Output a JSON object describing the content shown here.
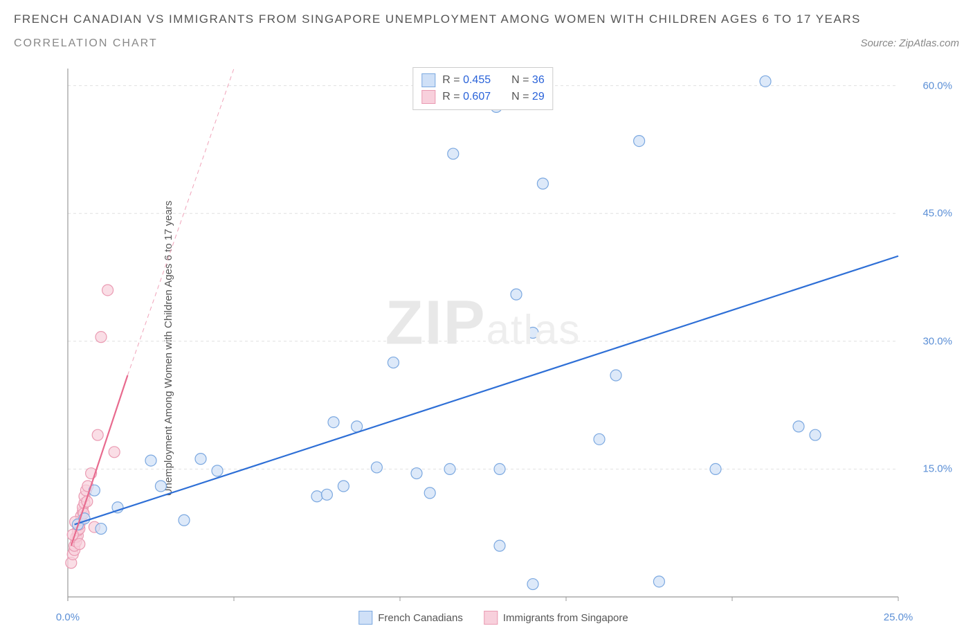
{
  "header": {
    "title": "FRENCH CANADIAN VS IMMIGRANTS FROM SINGAPORE UNEMPLOYMENT AMONG WOMEN WITH CHILDREN AGES 6 TO 17 YEARS",
    "subtitle": "CORRELATION CHART",
    "source": "Source: ZipAtlas.com"
  },
  "watermark": {
    "zip": "ZIP",
    "atlas": "atlas"
  },
  "chart": {
    "type": "scatter",
    "y_axis_label": "Unemployment Among Women with Children Ages 6 to 17 years",
    "x_range": [
      0,
      25
    ],
    "y_range": [
      0,
      62
    ],
    "x_ticks": [
      0,
      5,
      10,
      15,
      20,
      25
    ],
    "y_ticks": [
      15,
      30,
      45,
      60
    ],
    "x_tick_labels": [
      "0.0%",
      "",
      "",
      "",
      "",
      "25.0%"
    ],
    "y_tick_labels": [
      "15.0%",
      "30.0%",
      "45.0%",
      "60.0%"
    ],
    "grid_color": "#e0e0e0",
    "axis_color": "#999999",
    "background_color": "#ffffff",
    "marker_radius": 8,
    "marker_stroke_width": 1.2,
    "series": [
      {
        "name": "French Canadians",
        "label": "French Canadians",
        "fill": "#cfe0f7",
        "stroke": "#7ba8e0",
        "fill_opacity": 0.7,
        "R": "0.455",
        "N": "36",
        "points": [
          [
            0.3,
            8.5
          ],
          [
            0.5,
            9.2
          ],
          [
            0.8,
            12.5
          ],
          [
            1.0,
            8.0
          ],
          [
            1.5,
            10.5
          ],
          [
            2.5,
            16.0
          ],
          [
            2.8,
            13.0
          ],
          [
            3.5,
            9.0
          ],
          [
            4.0,
            16.2
          ],
          [
            4.5,
            14.8
          ],
          [
            7.5,
            11.8
          ],
          [
            7.8,
            12.0
          ],
          [
            8.3,
            13.0
          ],
          [
            8.0,
            20.5
          ],
          [
            8.7,
            20.0
          ],
          [
            9.3,
            15.2
          ],
          [
            9.8,
            27.5
          ],
          [
            10.5,
            14.5
          ],
          [
            10.9,
            12.2
          ],
          [
            11.5,
            15.0
          ],
          [
            11.6,
            52.0
          ],
          [
            13.0,
            6.0
          ],
          [
            13.0,
            15.0
          ],
          [
            12.9,
            57.5
          ],
          [
            13.5,
            35.5
          ],
          [
            14.0,
            1.5
          ],
          [
            14.0,
            31.0
          ],
          [
            14.3,
            48.5
          ],
          [
            16.0,
            18.5
          ],
          [
            16.5,
            26.0
          ],
          [
            17.2,
            53.5
          ],
          [
            17.8,
            1.8
          ],
          [
            19.5,
            15.0
          ],
          [
            21.0,
            60.5
          ],
          [
            22.0,
            20.0
          ],
          [
            22.5,
            19.0
          ]
        ],
        "trend": {
          "x1": 0.2,
          "y1": 8.5,
          "x2": 25.0,
          "y2": 40.0,
          "width": 2.2,
          "dash": null
        }
      },
      {
        "name": "Immigrants from Singapore",
        "label": "Immigrants from Singapore",
        "fill": "#f8d0dc",
        "stroke": "#ea9ab2",
        "fill_opacity": 0.7,
        "R": "0.607",
        "N": "29",
        "points": [
          [
            0.1,
            4.0
          ],
          [
            0.15,
            5.0
          ],
          [
            0.2,
            5.5
          ],
          [
            0.2,
            6.0
          ],
          [
            0.25,
            6.5
          ],
          [
            0.25,
            7.0
          ],
          [
            0.3,
            7.2
          ],
          [
            0.3,
            7.8
          ],
          [
            0.35,
            8.0
          ],
          [
            0.35,
            8.5
          ],
          [
            0.4,
            9.0
          ],
          [
            0.4,
            9.5
          ],
          [
            0.45,
            10.0
          ],
          [
            0.45,
            10.5
          ],
          [
            0.5,
            11.0
          ],
          [
            0.5,
            11.8
          ],
          [
            0.55,
            12.5
          ],
          [
            0.6,
            13.0
          ],
          [
            0.7,
            14.5
          ],
          [
            0.8,
            8.2
          ],
          [
            0.9,
            19.0
          ],
          [
            1.0,
            30.5
          ],
          [
            1.2,
            36.0
          ],
          [
            1.4,
            17.0
          ],
          [
            0.15,
            7.3
          ],
          [
            0.22,
            8.8
          ],
          [
            0.35,
            6.2
          ],
          [
            0.48,
            9.8
          ],
          [
            0.58,
            11.2
          ]
        ],
        "trend_solid": {
          "x1": 0.1,
          "y1": 6.0,
          "x2": 1.8,
          "y2": 26.0,
          "width": 2.2
        },
        "trend_dash": {
          "x1": 1.8,
          "y1": 26.0,
          "x2": 5.0,
          "y2": 62.0,
          "width": 1,
          "dash": "6 5"
        }
      }
    ],
    "legend_top": {
      "border_color": "#cccccc",
      "bg": "#ffffff",
      "rows": [
        {
          "swatch_fill": "#cfe0f7",
          "swatch_stroke": "#7ba8e0",
          "R_label": "R = ",
          "R_val": "0.455",
          "N_label": "N = ",
          "N_val": "36"
        },
        {
          "swatch_fill": "#f8d0dc",
          "swatch_stroke": "#ea9ab2",
          "R_label": "R = ",
          "R_val": "0.607",
          "N_label": "N = ",
          "N_val": "29"
        }
      ]
    },
    "legend_bottom": [
      {
        "swatch_fill": "#cfe0f7",
        "swatch_stroke": "#7ba8e0",
        "label": "French Canadians"
      },
      {
        "swatch_fill": "#f8d0dc",
        "swatch_stroke": "#ea9ab2",
        "label": "Immigrants from Singapore"
      }
    ]
  }
}
